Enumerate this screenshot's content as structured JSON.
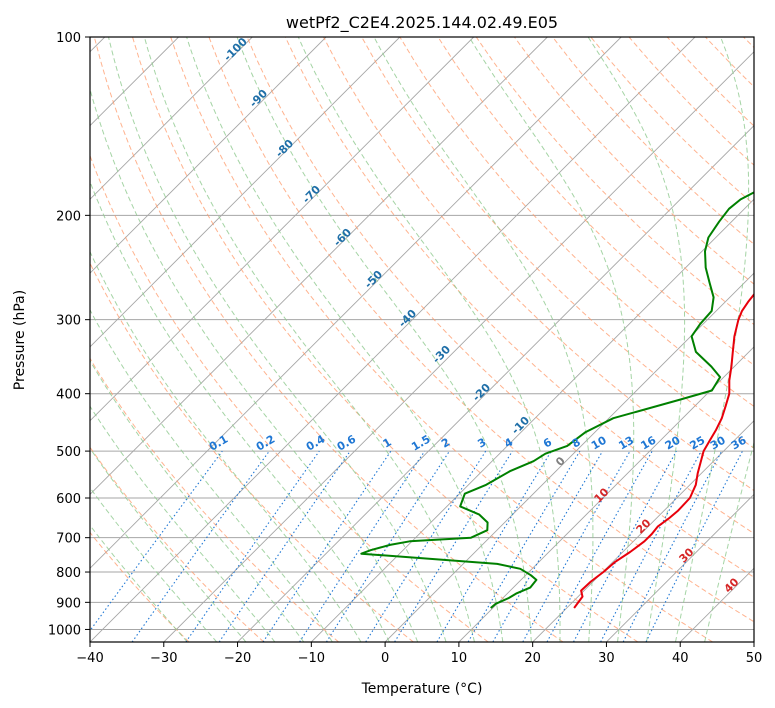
{
  "chart_data": {
    "type": "skew-t",
    "title": "wetPf2_C2E4.2025.144.02.49.E05",
    "xlabel": "Temperature (°C)",
    "ylabel": "Pressure (hPa)",
    "xlim": [
      -40,
      50
    ],
    "ylim_hpa": [
      1050,
      100
    ],
    "y_scale": "log",
    "grid": true,
    "x_ticks": [
      "−40",
      "−30",
      "−20",
      "−10",
      "0",
      "10",
      "20",
      "30",
      "40",
      "50"
    ],
    "x_tick_values": [
      -40,
      -30,
      -20,
      -10,
      0,
      10,
      20,
      30,
      40,
      50
    ],
    "y_ticks": [
      "100",
      "200",
      "300",
      "400",
      "500",
      "600",
      "700",
      "800",
      "900",
      "1000"
    ],
    "y_tick_values": [
      100,
      200,
      300,
      400,
      500,
      600,
      700,
      800,
      900,
      1000
    ],
    "series": [
      {
        "color": "#e8000b",
        "points": [
          [
            21.0,
            920
          ],
          [
            20.6,
            880
          ],
          [
            19.6,
            860
          ],
          [
            19.7,
            830
          ],
          [
            20.1,
            800
          ],
          [
            20.3,
            770
          ],
          [
            21.0,
            740
          ],
          [
            21.5,
            710
          ],
          [
            21.5,
            690
          ],
          [
            21.3,
            670
          ],
          [
            21.7,
            650
          ],
          [
            21.9,
            630
          ],
          [
            21.8,
            600
          ],
          [
            20.8,
            570
          ],
          [
            19.5,
            545
          ],
          [
            18.3,
            520
          ],
          [
            17.3,
            500
          ],
          [
            16.7,
            480
          ],
          [
            16.1,
            460
          ],
          [
            15.3,
            440
          ],
          [
            14.2,
            420
          ],
          [
            13.0,
            400
          ],
          [
            11.2,
            380
          ],
          [
            9.6,
            360
          ],
          [
            7.8,
            340
          ],
          [
            5.9,
            320
          ],
          [
            4.2,
            300
          ],
          [
            3.5,
            290
          ],
          [
            3.1,
            280
          ],
          [
            2.7,
            265
          ],
          [
            2.4,
            245
          ],
          [
            2.2,
            225
          ],
          [
            2.1,
            205
          ],
          [
            2.1,
            190
          ],
          [
            1.9,
            175
          ],
          [
            1.8,
            160
          ],
          [
            2.2,
            150
          ],
          [
            3.1,
            143
          ],
          [
            4.3,
            137
          ],
          [
            5.5,
            131
          ],
          [
            6.3,
            125
          ],
          [
            6.6,
            118
          ],
          [
            6.7,
            111
          ],
          [
            6.8,
            105
          ],
          [
            6.9,
            100
          ]
        ]
      },
      {
        "color": "#008000",
        "points": [
          [
            9.7,
            920
          ],
          [
            9.8,
            905
          ],
          [
            10.8,
            885
          ],
          [
            11.2,
            870
          ],
          [
            12.3,
            850
          ],
          [
            12.1,
            825
          ],
          [
            10.7,
            810
          ],
          [
            8.4,
            790
          ],
          [
            4.6,
            775
          ],
          [
            -15.2,
            745
          ],
          [
            -14.4,
            735
          ],
          [
            -12.5,
            720
          ],
          [
            -10.3,
            710
          ],
          [
            -2.5,
            700
          ],
          [
            -1.3,
            680
          ],
          [
            -2.3,
            660
          ],
          [
            -4.5,
            640
          ],
          [
            -8.2,
            620
          ],
          [
            -9.3,
            590
          ],
          [
            -7.6,
            570
          ],
          [
            -6.2,
            540
          ],
          [
            -4.4,
            520
          ],
          [
            -3.8,
            505
          ],
          [
            -1.9,
            490
          ],
          [
            -1.3,
            465
          ],
          [
            0.6,
            440
          ],
          [
            7.0,
            410
          ],
          [
            10.2,
            395
          ],
          [
            9.5,
            375
          ],
          [
            6.9,
            360
          ],
          [
            2.8,
            340
          ],
          [
            0.1,
            320
          ],
          [
            -0.4,
            305
          ],
          [
            -0.6,
            290
          ],
          [
            -2.2,
            275
          ],
          [
            -4.7,
            260
          ],
          [
            -7.3,
            245
          ],
          [
            -9.6,
            230
          ],
          [
            -11.0,
            218
          ],
          [
            -11.7,
            205
          ],
          [
            -12.1,
            195
          ],
          [
            -11.8,
            188
          ],
          [
            -10.4,
            180
          ],
          [
            -9.0,
            172
          ],
          [
            -7.6,
            165
          ],
          [
            -6.9,
            158
          ],
          [
            -6.8,
            150
          ],
          [
            -6.7,
            142
          ],
          [
            -6.1,
            135
          ],
          [
            -5.3,
            128
          ],
          [
            -4.3,
            122
          ],
          [
            -3.1,
            116
          ],
          [
            -1.7,
            110
          ],
          [
            -0.3,
            105
          ],
          [
            1.2,
            100
          ]
        ]
      }
    ],
    "dry_adiabat_labels": [
      {
        "text": "-100",
        "value": -100
      },
      {
        "text": "-90",
        "value": -90
      },
      {
        "text": "-80",
        "value": -80
      },
      {
        "text": "-70",
        "value": -70
      },
      {
        "text": "-60",
        "value": -60
      },
      {
        "text": "-50",
        "value": -50
      },
      {
        "text": "-40",
        "value": -40
      },
      {
        "text": "-30",
        "value": -30
      },
      {
        "text": "-20",
        "value": -20
      },
      {
        "text": "-10",
        "value": -10
      },
      {
        "text": "0",
        "value": 0
      },
      {
        "text": "10",
        "value": 10
      },
      {
        "text": "20",
        "value": 20
      },
      {
        "text": "30",
        "value": 30
      },
      {
        "text": "40",
        "value": 40
      }
    ],
    "mixing_ratio_labels": [
      {
        "text": "0.1",
        "value": 0.1
      },
      {
        "text": "0.2",
        "value": 0.2
      },
      {
        "text": "0.4",
        "value": 0.4
      },
      {
        "text": "0.6",
        "value": 0.6
      },
      {
        "text": "1",
        "value": 1
      },
      {
        "text": "1.5",
        "value": 1.5
      },
      {
        "text": "2",
        "value": 2
      },
      {
        "text": "3",
        "value": 3
      },
      {
        "text": "4",
        "value": 4
      },
      {
        "text": "6",
        "value": 6
      },
      {
        "text": "8",
        "value": 8
      },
      {
        "text": "10",
        "value": 10
      },
      {
        "text": "13",
        "value": 13
      },
      {
        "text": "16",
        "value": 16
      },
      {
        "text": "20",
        "value": 20
      },
      {
        "text": "25",
        "value": 25
      },
      {
        "text": "30",
        "value": 30
      },
      {
        "text": "36",
        "value": 36
      }
    ],
    "colors": {
      "temperature": "#e8000b",
      "dewpoint": "#008000",
      "isotherm": "#a6a6a6",
      "dry_adiabat": "#ff9a6a",
      "moist_adiabat": "#8fc98f",
      "mixing_ratio": "#1f77d4",
      "label_cold": "#1f6fa8",
      "label_zero": "#7f7f7f",
      "label_warm": "#d62728"
    }
  }
}
